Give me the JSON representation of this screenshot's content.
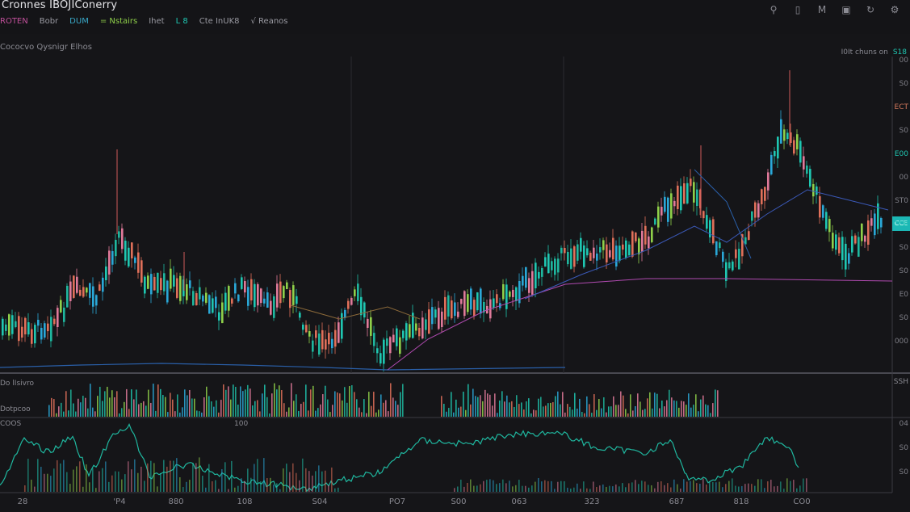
{
  "app": {
    "title": "Cronnes IBOJIConerry"
  },
  "indicators": [
    {
      "label": "ROTEN",
      "color": "#c2509b"
    },
    {
      "label": "Bobr",
      "color": "#9a9aa2"
    },
    {
      "label": "DUM",
      "color": "#39a9c9"
    },
    {
      "label": "= Nstairs",
      "color": "#8fd04a"
    },
    {
      "label": "Ihet",
      "color": "#9a9aa2"
    },
    {
      "label": "L 8",
      "color": "#1fc7b2"
    },
    {
      "label": "Cte InUK8",
      "color": "#9a9aa2"
    },
    {
      "label": "√ Reanos",
      "color": "#9a9aa2"
    }
  ],
  "toolbar_icons": [
    "search-icon",
    "bookmark-icon",
    "layout-icon",
    "save-icon",
    "refresh-icon",
    "settings-icon"
  ],
  "main_label": "Cococvo Qysnigr Elhos",
  "price_tag": {
    "text": "I0It chuns on",
    "accent": "S18"
  },
  "current_price": "CCE",
  "volume_label": "Do lIsivro",
  "volume_label2": "Dotpcoo",
  "osc_label": "COOS",
  "osc_label2": "100",
  "y_axis": [
    "00",
    "S0",
    "ECT",
    "S0",
    "E00",
    "00",
    "ST0",
    "CCE",
    "S0",
    "S0",
    "E0",
    "S0",
    "000"
  ],
  "vol_axis": "SSH",
  "osc_axis": [
    "04",
    "S0",
    "S0"
  ],
  "x_axis": [
    {
      "label": "28",
      "x": 28
    },
    {
      "label": "'P4",
      "x": 148
    },
    {
      "label": "880",
      "x": 218
    },
    {
      "label": "108",
      "x": 303
    },
    {
      "label": "S04",
      "x": 396
    },
    {
      "label": "PO7",
      "x": 492
    },
    {
      "label": "S00",
      "x": 568
    },
    {
      "label": "063",
      "x": 643
    },
    {
      "label": "323",
      "x": 733
    },
    {
      "label": "687",
      "x": 838
    },
    {
      "label": "818",
      "x": 918
    },
    {
      "label": "CO0",
      "x": 993
    }
  ]
}
